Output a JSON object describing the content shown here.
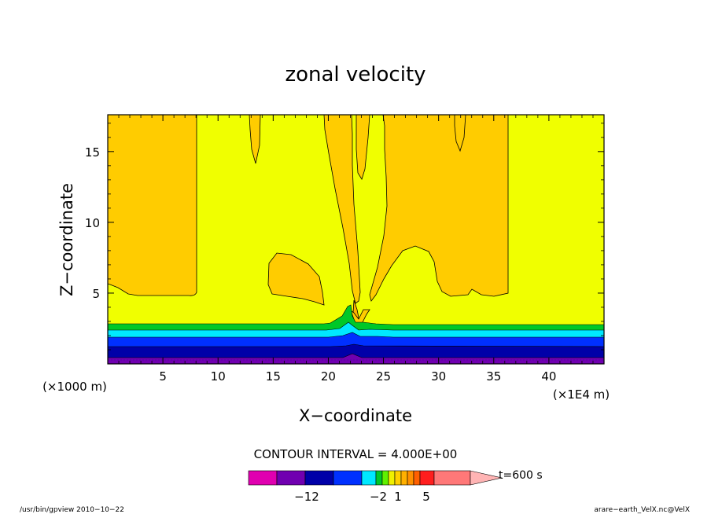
{
  "chart_data": {
    "type": "heatmap",
    "title": "zonal velocity",
    "xlabel": "X−coordinate",
    "ylabel": "Z−coordinate",
    "x_unit": "(×1E4 m)",
    "y_unit": "(×1000 m)",
    "xlim": [
      0,
      45
    ],
    "ylim": [
      0,
      17.6
    ],
    "x_ticks": [
      5,
      10,
      15,
      20,
      25,
      30,
      35,
      40
    ],
    "y_ticks": [
      5,
      10,
      15
    ],
    "x_ticks_labels": [
      "5",
      "10",
      "15",
      "20",
      "25",
      "30",
      "35",
      "40"
    ],
    "y_ticks_labels": [
      "5",
      "10",
      "15"
    ],
    "contour_interval": "CONTOUR INTERVAL = 4.000E+00",
    "time_label": "t=600 s",
    "colorbar_labels": [
      "−12",
      "−2",
      "1",
      "5"
    ],
    "colorbar_colors": [
      "#e000b0",
      "#7000b0",
      "#0000a8",
      "#0030ff",
      "#00e8ff",
      "#00c828",
      "#60f000",
      "#f0f000",
      "#ffd000",
      "#ffb000",
      "#ff9000",
      "#ff6000",
      "#ff1e1e",
      "#ff7878",
      "#ffb4b4"
    ],
    "colors": {
      "background": "#f0ff00",
      "orange": "#ffcc00",
      "light_orange": "#ffb000",
      "green": "#00c828",
      "cyan": "#00e8ff",
      "blue": "#0030ff",
      "dark_blue": "#0000a8",
      "purple": "#7000b0"
    }
  },
  "footer": {
    "left": "/usr/bin/gpview  2010−10−22",
    "right": "arare−earth_VelX.nc@VelX"
  }
}
